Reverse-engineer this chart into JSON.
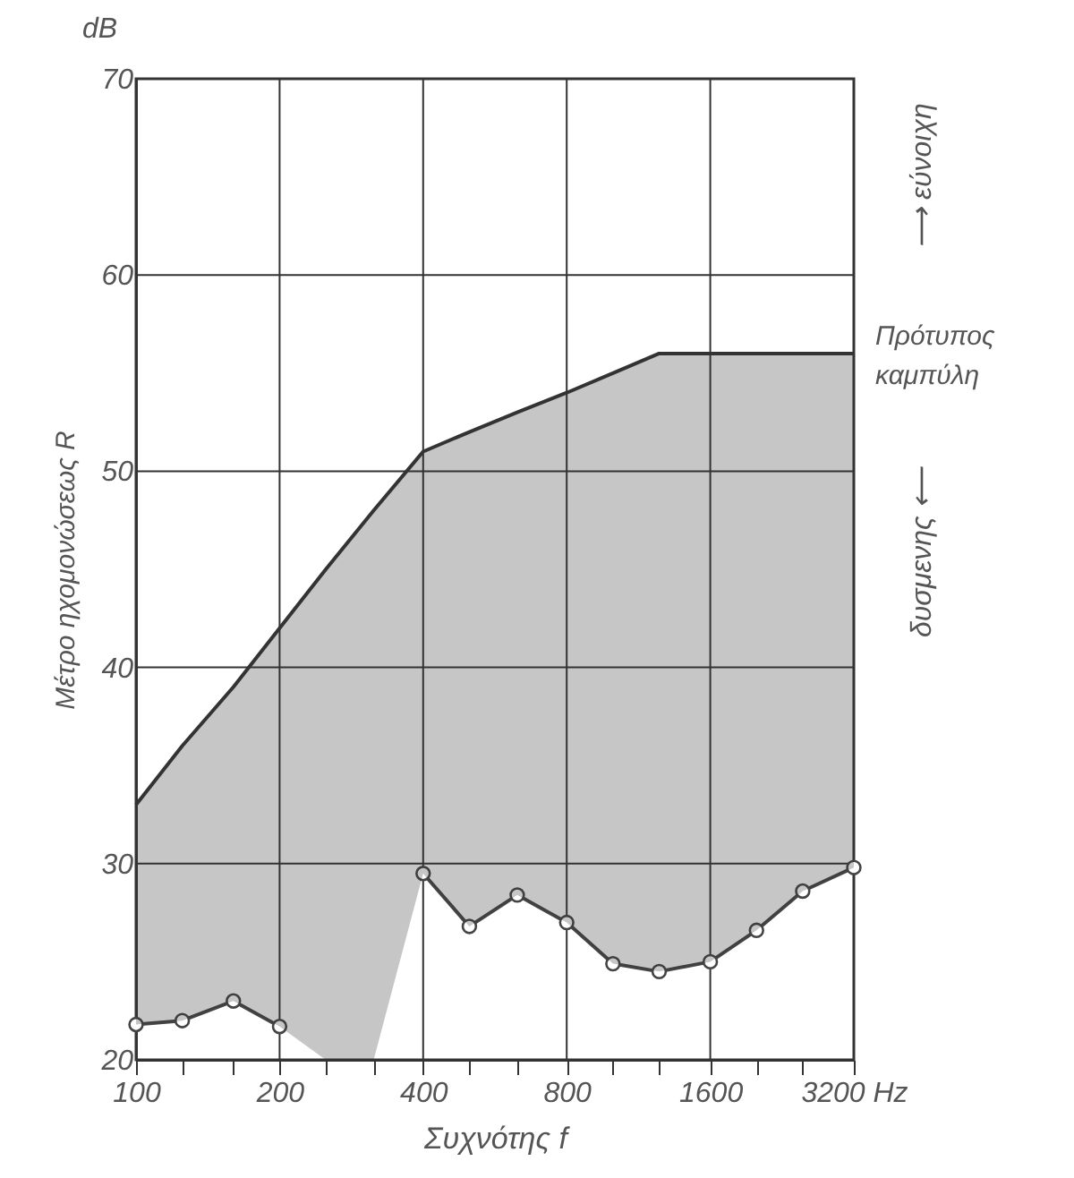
{
  "chart_data": {
    "type": "line",
    "xlabel": "Συχνότης f",
    "ylabel": "Μέτρο ηχομονώσεως  R",
    "annotations": [
      "dB",
      "⟶ εύνοιχη",
      "δυσμενης ⟵"
    ],
    "log": "x",
    "xlim": [
      100,
      3200
    ],
    "xticks": [
      100,
      {
        "value": 125,
        "label": null
      },
      {
        "value": 160,
        "label": null
      },
      200,
      {
        "value": 250,
        "label": null
      },
      {
        "value": 315,
        "label": null
      },
      400,
      {
        "value": 500,
        "label": null
      },
      {
        "value": 630,
        "label": null
      },
      800,
      {
        "value": 1000,
        "label": null
      },
      {
        "value": 1250,
        "label": null
      },
      1600,
      {
        "value": 2000,
        "label": null
      },
      {
        "value": 2500,
        "label": null
      },
      {
        "value": 3200,
        "label": "3200 Hz"
      }
    ],
    "ylim": [
      20,
      70
    ],
    "yticks": [
      20,
      30,
      40,
      50,
      60,
      70
    ],
    "grid": true,
    "legend": false,
    "x": [
      100,
      125,
      160,
      200,
      250,
      315,
      400,
      500,
      630,
      800,
      1000,
      1250,
      1600,
      2000,
      2500,
      3200
    ],
    "series": [
      {
        "color": "#444444",
        "marker": "circle",
        "values": [
          21.8,
          22,
          23,
          21.7,
          null,
          null,
          29.5,
          26.8,
          28.4,
          27,
          24.9,
          24.5,
          25,
          26.6,
          28.6,
          29.8
        ]
      },
      {
        "name": "Πρότυπος καμπύλη",
        "color": "#333333",
        "marker": "none",
        "values": [
          33,
          36,
          39,
          42,
          45,
          48,
          51,
          52,
          53,
          54,
          55,
          56,
          56,
          56,
          56,
          56
        ],
        "upper": [
          33,
          36,
          39,
          42,
          45,
          48,
          51,
          52,
          53,
          54,
          55,
          56,
          56,
          56,
          56,
          56
        ],
        "lower": [
          21.8,
          22,
          23,
          21.7,
          20,
          20,
          29.5,
          26.8,
          28.4,
          27,
          24.9,
          24.5,
          25,
          26.6,
          28.6,
          29.8
        ]
      }
    ]
  }
}
